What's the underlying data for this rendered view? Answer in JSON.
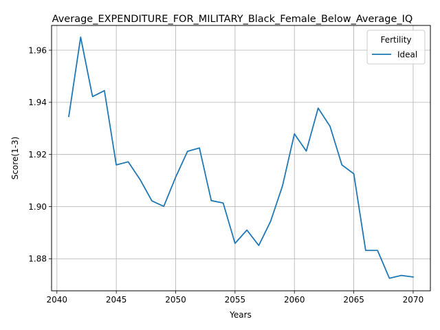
{
  "chart_data": {
    "type": "line",
    "title": "Average_EXPENDITURE_FOR_MILITARY_Black_Female_Below_Average_IQ",
    "xlabel": "Years",
    "ylabel": "Score(1-3)",
    "xlim": [
      2039.55,
      2071.45
    ],
    "ylim": [
      1.8677,
      1.9695
    ],
    "xticks": [
      "2040",
      "2045",
      "2050",
      "2055",
      "2060",
      "2065",
      "2070"
    ],
    "xtick_values": [
      2040,
      2045,
      2050,
      2055,
      2060,
      2065,
      2070
    ],
    "yticks": [
      "1.88",
      "1.90",
      "1.92",
      "1.94",
      "1.96"
    ],
    "ytick_values": [
      1.88,
      1.9,
      1.92,
      1.94,
      1.96
    ],
    "grid": true,
    "legend": {
      "title": "Fertility",
      "placement": "top-right"
    },
    "series": [
      {
        "name": "Ideal",
        "color": "#1f77b4",
        "x": [
          2041,
          2042,
          2043,
          2044,
          2045,
          2046,
          2047,
          2048,
          2049,
          2050,
          2051,
          2052,
          2053,
          2054,
          2055,
          2056,
          2057,
          2058,
          2059,
          2060,
          2061,
          2062,
          2063,
          2064,
          2065,
          2066,
          2067,
          2068,
          2069,
          2070
        ],
        "y": [
          1.9346,
          1.965,
          1.9422,
          1.9445,
          1.916,
          1.9172,
          1.9104,
          1.9022,
          1.9001,
          1.9113,
          1.9212,
          1.9225,
          1.9023,
          1.9014,
          1.8859,
          1.891,
          1.8851,
          1.8944,
          1.908,
          1.9279,
          1.9213,
          1.9378,
          1.9308,
          1.916,
          1.9126,
          1.8832,
          1.8832,
          1.8725,
          1.8736,
          1.873
        ]
      }
    ]
  }
}
